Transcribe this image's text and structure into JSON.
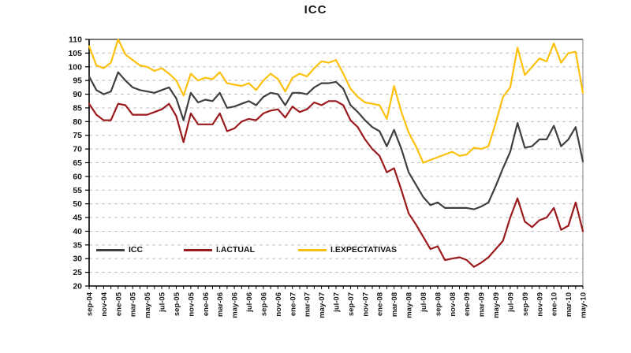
{
  "title": "ICC",
  "chart_data": {
    "type": "line",
    "title": "ICC",
    "xlabel": "",
    "ylabel": "",
    "ylim": [
      20,
      110
    ],
    "ytick_step": 5,
    "grid": "horizontal-dashed",
    "x_label_every": 2,
    "legend_position": "inside-bottom-left",
    "categories": [
      "sep-04",
      "oct-04",
      "nov-04",
      "dic-04",
      "ene-05",
      "feb-05",
      "mar-05",
      "abr-05",
      "may-05",
      "jun-05",
      "jul-05",
      "ago-05",
      "sep-05",
      "oct-05",
      "nov-05",
      "dic-05",
      "ene-06",
      "feb-06",
      "mar-06",
      "abr-06",
      "may-06",
      "jun-06",
      "jul-06",
      "ago-06",
      "sep-06",
      "oct-06",
      "nov-06",
      "dic-06",
      "ene-07",
      "feb-07",
      "mar-07",
      "abr-07",
      "may-07",
      "jun-07",
      "jul-07",
      "ago-07",
      "sep-07",
      "oct-07",
      "nov-07",
      "dic-07",
      "ene-08",
      "feb-08",
      "mar-08",
      "abr-08",
      "may-08",
      "jun-08",
      "jul-08",
      "ago-08",
      "sep-08",
      "oct-08",
      "nov-08",
      "dic-08",
      "ene-09",
      "feb-09",
      "mar-09",
      "abr-09",
      "may-09",
      "jun-09",
      "jul-09",
      "ago-09",
      "sep-09",
      "oct-09",
      "nov-09",
      "dic-09",
      "ene-10",
      "feb-10",
      "mar-10",
      "abr-10",
      "may-10"
    ],
    "series": [
      {
        "name": "ICC",
        "color": "#3f3f3f",
        "values": [
          96.5,
          91.5,
          90,
          91,
          98,
          95,
          92.5,
          91.5,
          91,
          90.5,
          91.5,
          92.5,
          88.5,
          80.5,
          90.5,
          87,
          88,
          87.5,
          90.5,
          85,
          85.5,
          86.5,
          87.5,
          86,
          89,
          90.5,
          90,
          86,
          90.5,
          90.5,
          90,
          92.5,
          94,
          94,
          94.5,
          92,
          86,
          83.5,
          80.5,
          78,
          76.5,
          71,
          77,
          70,
          61.5,
          57,
          52.5,
          49.5,
          50.5,
          48.5,
          48.5,
          48.5,
          48.5,
          48,
          49,
          50.5,
          56.5,
          63,
          69,
          79.5,
          70.5,
          71,
          73.5,
          73.5,
          78.5,
          71,
          73.5,
          78,
          65.5
        ]
      },
      {
        "name": "I.ACTUAL",
        "color": "#9b1a1d",
        "values": [
          86.5,
          82.5,
          80.5,
          80.5,
          86.5,
          86,
          82.5,
          82.5,
          82.5,
          83.5,
          84.5,
          86.5,
          82,
          72.5,
          83,
          79,
          79,
          79,
          83,
          76.5,
          77.5,
          80,
          81,
          80.5,
          83,
          84,
          84.5,
          81.5,
          85.5,
          83.5,
          84.5,
          87,
          86,
          87.5,
          87.5,
          86,
          80.5,
          78,
          73.5,
          70,
          67.5,
          61.5,
          63,
          55,
          46.5,
          42.5,
          38,
          33.5,
          34.5,
          29.5,
          30,
          30.5,
          29.5,
          27,
          28.5,
          30.5,
          33.5,
          36.5,
          45,
          52,
          43.5,
          41.5,
          44,
          45,
          48.5,
          40.5,
          42,
          50.5,
          40
        ]
      },
      {
        "name": "I.EXPECTATIVAS",
        "color": "#fdc00d",
        "values": [
          107.5,
          100.5,
          99.5,
          101.5,
          110,
          104.5,
          102.5,
          100.5,
          100,
          98.5,
          99.5,
          97.5,
          95,
          89.5,
          97.5,
          95,
          96,
          95.5,
          98,
          94,
          93.5,
          93,
          94,
          91.5,
          95,
          97.5,
          95.5,
          91,
          96,
          97.5,
          96.5,
          99.5,
          102,
          101.5,
          102.5,
          97.5,
          92,
          89,
          87,
          86.5,
          86,
          81,
          93,
          83.5,
          76,
          71,
          65,
          66,
          67,
          68,
          69,
          67.5,
          68,
          70.5,
          70,
          71,
          79.5,
          89,
          92.5,
          107,
          97,
          100,
          103,
          102,
          108.5,
          101.5,
          105,
          105.5,
          90.5
        ]
      }
    ]
  },
  "colors": {
    "grid": "#bfbfbf",
    "axis": "#000000",
    "border_top": "#4d4d4d",
    "border_right": "#808080",
    "tick_text": "#1a1a1a"
  }
}
